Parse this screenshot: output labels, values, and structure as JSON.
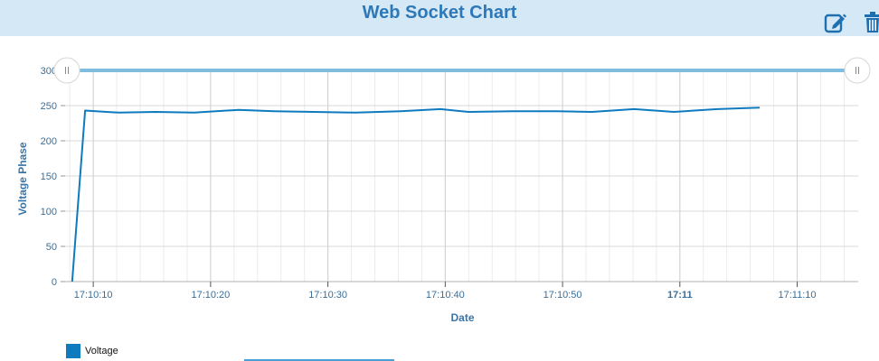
{
  "window": {
    "title": "Web Socket Chart"
  },
  "toolbar": {
    "edit_icon": "edit-icon",
    "delete_icon": "trash-icon"
  },
  "colors": {
    "header_bg": "#d4e8f5",
    "title": "#2e78b8",
    "series": "#0e7bbf",
    "scrollbar": "#7fbddf"
  },
  "chart_data": {
    "type": "line",
    "xlabel": "Date",
    "ylabel": "Voltage Phase",
    "ylim": [
      0,
      300
    ],
    "y_ticks": [
      0,
      50,
      100,
      150,
      200,
      250,
      300
    ],
    "x_ticks": [
      "17:10:10",
      "17:10:20",
      "17:10:30",
      "17:10:40",
      "17:10:50",
      "17:11",
      "17:11:10"
    ],
    "x_range": [
      "17:10:07.6",
      "17:11:15.2"
    ],
    "grid": true,
    "legend": "bottom-left",
    "scrollbar_value": 300,
    "series": [
      {
        "name": "Voltage",
        "color": "#0e7bbf",
        "points": [
          [
            "17:10:08.2",
            0
          ],
          [
            "17:10:09.3",
            243
          ],
          [
            "17:10:12.2",
            240
          ],
          [
            "17:10:15.3",
            241
          ],
          [
            "17:10:18.6",
            240
          ],
          [
            "17:10:22.4",
            244
          ],
          [
            "17:10:25.4",
            242
          ],
          [
            "17:10:28.8",
            241
          ],
          [
            "17:10:32.4",
            240
          ],
          [
            "17:10:36.2",
            242
          ],
          [
            "17:10:39.6",
            245
          ],
          [
            "17:10:42.0",
            241
          ],
          [
            "17:10:45.8",
            242
          ],
          [
            "17:10:49.5",
            242
          ],
          [
            "17:10:52.5",
            241
          ],
          [
            "17:10:56.1",
            245
          ],
          [
            "17:10:59.5",
            241
          ],
          [
            "17:11:03.2",
            245
          ],
          [
            "17:11:06.8",
            247
          ]
        ]
      }
    ]
  }
}
